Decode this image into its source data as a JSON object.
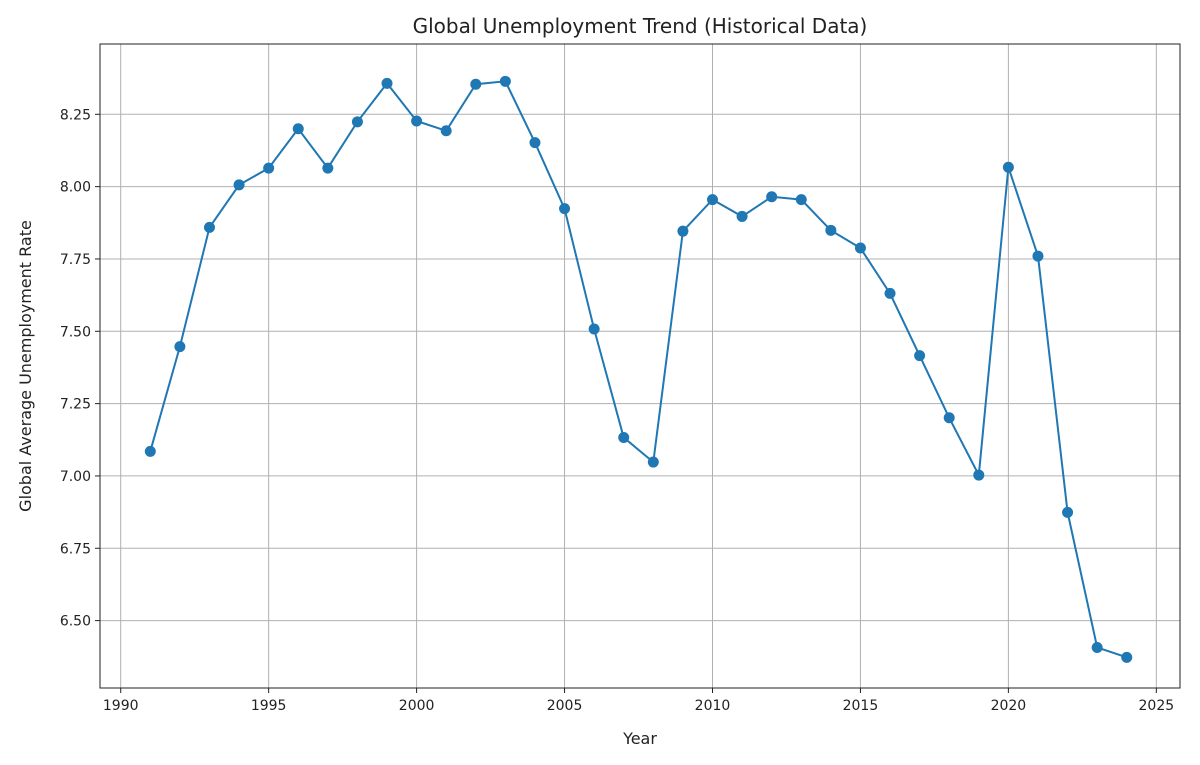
{
  "chart_data": {
    "type": "line",
    "title": "Global Unemployment Trend (Historical Data)",
    "xlabel": "Year",
    "ylabel": "Global Average Unemployment Rate",
    "xlim": [
      1989.3,
      2025.8
    ],
    "ylim": [
      6.267,
      8.493
    ],
    "xticks": [
      1990,
      1995,
      2000,
      2005,
      2010,
      2015,
      2020,
      2025
    ],
    "yticks": [
      6.5,
      6.75,
      7.0,
      7.25,
      7.5,
      7.75,
      8.0,
      8.25
    ],
    "ytick_labels": [
      "6.50",
      "6.75",
      "7.00",
      "7.25",
      "7.50",
      "7.75",
      "8.00",
      "8.25"
    ],
    "grid": true,
    "marker": "circle",
    "color": "#1f77b4",
    "x": [
      1991,
      1992,
      1993,
      1994,
      1995,
      1996,
      1997,
      1998,
      1999,
      2000,
      2001,
      2002,
      2003,
      2004,
      2005,
      2006,
      2007,
      2008,
      2009,
      2010,
      2011,
      2012,
      2013,
      2014,
      2015,
      2016,
      2017,
      2018,
      2019,
      2020,
      2021,
      2022,
      2023,
      2024
    ],
    "values": [
      7.085,
      7.447,
      7.859,
      8.006,
      8.064,
      8.2,
      8.064,
      8.224,
      8.357,
      8.227,
      8.193,
      8.354,
      8.364,
      8.152,
      7.924,
      7.508,
      7.133,
      7.048,
      7.846,
      7.955,
      7.897,
      7.965,
      7.955,
      7.849,
      7.788,
      7.631,
      7.416,
      7.201,
      7.003,
      8.067,
      7.76,
      6.874,
      6.407,
      6.373
    ]
  }
}
